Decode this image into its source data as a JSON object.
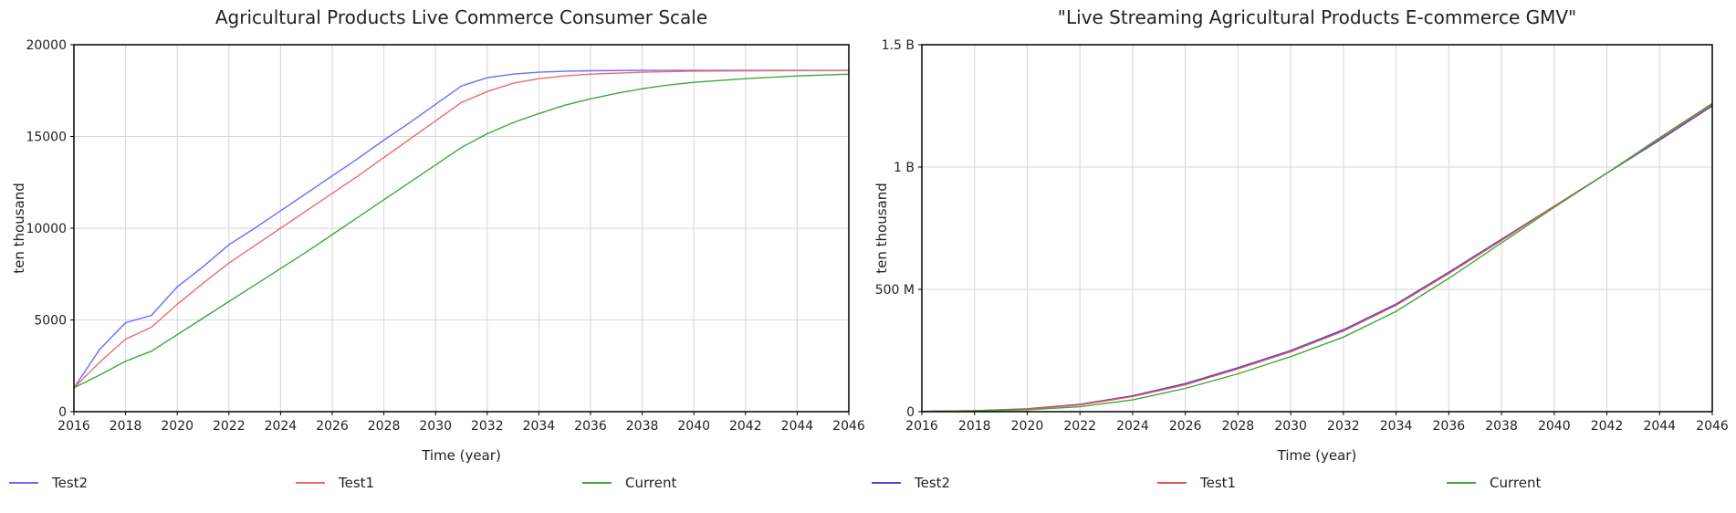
{
  "chart_data": [
    {
      "type": "line",
      "title": "Agricultural Products Live Commerce Consumer Scale",
      "xlabel": "Time (year)",
      "ylabel": "ten thousand",
      "xlim": [
        2016,
        2046
      ],
      "ylim": [
        0,
        20000
      ],
      "xticks": [
        2016,
        2018,
        2020,
        2022,
        2024,
        2026,
        2028,
        2030,
        2032,
        2034,
        2036,
        2038,
        2040,
        2042,
        2044,
        2046
      ],
      "yticks": [
        0,
        5000,
        10000,
        15000,
        20000
      ],
      "ytick_labels": [
        "0",
        "5000",
        "10000",
        "15000",
        "20000"
      ],
      "grid": true,
      "legend_position": "bottom",
      "series": [
        {
          "name": "Test2",
          "color": "#6b6bff",
          "x": [
            2016,
            2017,
            2018,
            2019,
            2020,
            2021,
            2022,
            2023,
            2024,
            2025,
            2026,
            2027,
            2028,
            2029,
            2030,
            2031,
            2032,
            2033,
            2034,
            2035,
            2036,
            2038,
            2040,
            2046
          ],
          "y": [
            1300,
            3400,
            4850,
            5250,
            6800,
            7900,
            9100,
            10000,
            10950,
            11900,
            12850,
            13800,
            14800,
            15750,
            16750,
            17750,
            18200,
            18400,
            18500,
            18550,
            18580,
            18600,
            18600,
            18600
          ]
        },
        {
          "name": "Test1",
          "color": "#f06a6a",
          "x": [
            2016,
            2017,
            2018,
            2019,
            2020,
            2021,
            2022,
            2023,
            2024,
            2025,
            2026,
            2027,
            2028,
            2029,
            2030,
            2031,
            2032,
            2033,
            2034,
            2035,
            2036,
            2037,
            2038,
            2040,
            2046
          ],
          "y": [
            1300,
            2700,
            3950,
            4600,
            5850,
            7000,
            8100,
            9050,
            10000,
            10950,
            11900,
            12850,
            13850,
            14850,
            15850,
            16850,
            17450,
            17900,
            18150,
            18300,
            18400,
            18450,
            18500,
            18560,
            18600
          ]
        },
        {
          "name": "Current",
          "color": "#3da83d",
          "x": [
            2016,
            2017,
            2018,
            2019,
            2020,
            2021,
            2022,
            2023,
            2024,
            2025,
            2026,
            2027,
            2028,
            2029,
            2030,
            2031,
            2032,
            2033,
            2034,
            2035,
            2036,
            2037,
            2038,
            2039,
            2040,
            2041,
            2042,
            2044,
            2046
          ],
          "y": [
            1300,
            2000,
            2750,
            3300,
            4200,
            5100,
            6000,
            6900,
            7800,
            8700,
            9650,
            10600,
            11550,
            12500,
            13450,
            14400,
            15150,
            15750,
            16250,
            16700,
            17050,
            17350,
            17600,
            17800,
            17950,
            18050,
            18150,
            18300,
            18400
          ]
        }
      ]
    },
    {
      "type": "line",
      "title": "\"Live Streaming Agricultural Products E-commerce GMV\"",
      "xlabel": "Time (year)",
      "ylabel": "ten thousand",
      "xlim": [
        2016,
        2046
      ],
      "ylim": [
        0,
        1500000000
      ],
      "xticks": [
        2016,
        2018,
        2020,
        2022,
        2024,
        2026,
        2028,
        2030,
        2032,
        2034,
        2036,
        2038,
        2040,
        2042,
        2044,
        2046
      ],
      "yticks": [
        0,
        500000000,
        1000000000,
        1500000000
      ],
      "ytick_labels": [
        "0",
        "500 M",
        "1 B",
        "1.5 B"
      ],
      "grid": true,
      "legend_position": "bottom",
      "series": [
        {
          "name": "Test2",
          "color": "#4646e0",
          "x": [
            2016,
            2018,
            2020,
            2022,
            2024,
            2026,
            2028,
            2030,
            2032,
            2034,
            2036,
            2038,
            2040,
            2042,
            2044,
            2046
          ],
          "y": [
            1000000,
            4000000,
            12000000,
            30000000,
            65000000,
            115000000,
            180000000,
            250000000,
            335000000,
            440000000,
            570000000,
            705000000,
            840000000,
            975000000,
            1110000000,
            1250000000
          ]
        },
        {
          "name": "Test1",
          "color": "#e85050",
          "x": [
            2016,
            2018,
            2020,
            2022,
            2024,
            2026,
            2028,
            2030,
            2032,
            2034,
            2036,
            2038,
            2040,
            2042,
            2044,
            2046
          ],
          "y": [
            1000000,
            4000000,
            11000000,
            28000000,
            62000000,
            110000000,
            175000000,
            245000000,
            330000000,
            435000000,
            565000000,
            700000000,
            840000000,
            975000000,
            1115000000,
            1255000000
          ]
        },
        {
          "name": "Current",
          "color": "#3da83d",
          "x": [
            2016,
            2018,
            2020,
            2022,
            2024,
            2026,
            2028,
            2030,
            2032,
            2034,
            2036,
            2038,
            2040,
            2042,
            2044,
            2046
          ],
          "y": [
            1000000,
            3000000,
            8000000,
            20000000,
            48000000,
            95000000,
            155000000,
            225000000,
            305000000,
            410000000,
            545000000,
            690000000,
            835000000,
            975000000,
            1120000000,
            1260000000
          ]
        }
      ]
    }
  ]
}
